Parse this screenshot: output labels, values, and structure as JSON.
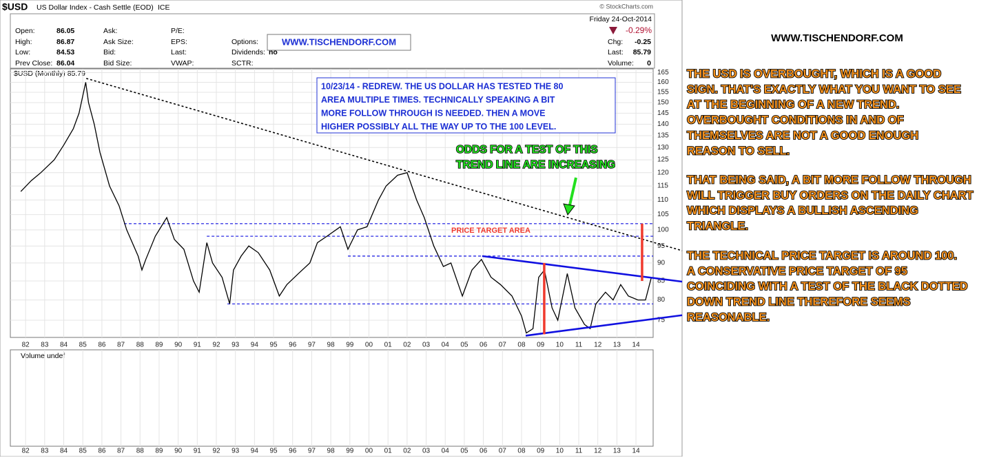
{
  "header": {
    "symbol": "$USD",
    "name": "US Dollar Index - Cash Settle (EOD)",
    "exchange": "ICE",
    "source": "© StockCharts.com",
    "date": "Friday  24-Oct-2014",
    "change_pct": "-0.29%",
    "col1": [
      {
        "label": "Open:",
        "value": 86.05
      },
      {
        "label": "High:",
        "value": 86.87
      },
      {
        "label": "Low:",
        "value": 84.53
      },
      {
        "label": "Prev Close:",
        "value": 86.04
      }
    ],
    "col2": [
      "Ask:",
      "Ask Size:",
      "Bid:",
      "Bid Size:"
    ],
    "col3": [
      "P/E:",
      "EPS:",
      "Last:",
      "VWAP:"
    ],
    "col4": [
      "Options:",
      "Dividends:",
      "SCTR:"
    ],
    "dividends_value": "no",
    "right": [
      {
        "label": "Chg:",
        "value": -0.25
      },
      {
        "label": "Last:",
        "value": 85.79
      },
      {
        "label": "Volume:",
        "value": 0
      }
    ]
  },
  "chart_data": {
    "type": "line",
    "legend": "$USD (Monthly)",
    "last": 85.79,
    "x": [
      1981.75,
      1982.3,
      1982.8,
      1983.5,
      1984.0,
      1984.5,
      1984.8,
      1985.15,
      1985.3,
      1985.6,
      1985.9,
      1986.4,
      1986.9,
      1987.3,
      1987.9,
      1988.1,
      1988.3,
      1988.8,
      1989.4,
      1989.8,
      1990.3,
      1990.8,
      1991.1,
      1991.5,
      1991.8,
      1992.3,
      1992.7,
      1992.9,
      1993.3,
      1993.7,
      1994.2,
      1994.8,
      1995.3,
      1995.7,
      1996.3,
      1996.9,
      1997.3,
      1997.8,
      1998.5,
      1998.9,
      1999.4,
      1999.9,
      2000.5,
      2000.9,
      2001.5,
      2002.0,
      2002.5,
      2002.9,
      2003.4,
      2003.9,
      2004.3,
      2004.9,
      2005.4,
      2005.9,
      2006.4,
      2006.9,
      2007.5,
      2008.0,
      2008.25,
      2008.6,
      2008.9,
      2009.2,
      2009.6,
      2009.9,
      2010.4,
      2010.8,
      2011.3,
      2011.6,
      2011.9,
      2012.4,
      2012.8,
      2013.2,
      2013.6,
      2014.1,
      2014.5,
      2014.8
    ],
    "series": [
      {
        "name": "$USD (Monthly)",
        "color": "#000000",
        "values": [
          113,
          117,
          120,
          125,
          131,
          138,
          145,
          160,
          150,
          140,
          128,
          115,
          108,
          100,
          92,
          88,
          91,
          98,
          104,
          97,
          94,
          85,
          82,
          96,
          90,
          86,
          79,
          88,
          92,
          95,
          93,
          88,
          81,
          84,
          87,
          90,
          96,
          98,
          101,
          94,
          100,
          101,
          110,
          115,
          119,
          120,
          110,
          104,
          95,
          89,
          90,
          81,
          88,
          91,
          86,
          84,
          81,
          76,
          72,
          73,
          86,
          88,
          78,
          75,
          87,
          78,
          74,
          73,
          79,
          82,
          80,
          84,
          81,
          80,
          80,
          85.79
        ]
      }
    ],
    "xlim": [
      1981.2,
      2014.9
    ],
    "ylim": [
      71,
      167
    ],
    "log_y": true,
    "grid": true,
    "xticks": [
      {
        "value": 1982,
        "label": "82"
      },
      {
        "value": 1983,
        "label": "83"
      },
      {
        "value": 1984,
        "label": "84"
      },
      {
        "value": 1985,
        "label": "85"
      },
      {
        "value": 1986,
        "label": "86"
      },
      {
        "value": 1987,
        "label": "87"
      },
      {
        "value": 1988,
        "label": "88"
      },
      {
        "value": 1989,
        "label": "89"
      },
      {
        "value": 1990,
        "label": "90"
      },
      {
        "value": 1991,
        "label": "91"
      },
      {
        "value": 1992,
        "label": "92"
      },
      {
        "value": 1993,
        "label": "93"
      },
      {
        "value": 1994,
        "label": "94"
      },
      {
        "value": 1995,
        "label": "95"
      },
      {
        "value": 1996,
        "label": "96"
      },
      {
        "value": 1997,
        "label": "97"
      },
      {
        "value": 1998,
        "label": "98"
      },
      {
        "value": 1999,
        "label": "99"
      },
      {
        "value": 2000,
        "label": "00"
      },
      {
        "value": 2001,
        "label": "01"
      },
      {
        "value": 2002,
        "label": "02"
      },
      {
        "value": 2003,
        "label": "03"
      },
      {
        "value": 2004,
        "label": "04"
      },
      {
        "value": 2005,
        "label": "05"
      },
      {
        "value": 2006,
        "label": "06"
      },
      {
        "value": 2007,
        "label": "07"
      },
      {
        "value": 2008,
        "label": "08"
      },
      {
        "value": 2009,
        "label": "09"
      },
      {
        "value": 2010,
        "label": "10"
      },
      {
        "value": 2011,
        "label": "11"
      },
      {
        "value": 2012,
        "label": "12"
      },
      {
        "value": 2013,
        "label": "13"
      },
      {
        "value": 2014,
        "label": "14"
      }
    ],
    "yticks": [
      75,
      80,
      85,
      90,
      95,
      100,
      105,
      110,
      115,
      120,
      125,
      130,
      135,
      140,
      145,
      150,
      155,
      160,
      165
    ],
    "trendlines": [
      {
        "color": "#000000",
        "style": "dotted",
        "x": [
          1985.18,
          2016.42
        ],
        "values": [
          162,
          93.6
        ]
      },
      {
        "color": "#1010e0",
        "style": "solid",
        "x": [
          2005.94,
          2016.42
        ],
        "values": [
          92,
          84.8
        ]
      },
      {
        "color": "#1010e0",
        "style": "solid",
        "x": [
          2008.22,
          2016.42
        ],
        "values": [
          71.4,
          76.2
        ]
      }
    ],
    "levels": [
      {
        "x": [
          1987.16,
          2014.9
        ],
        "value": 102
      },
      {
        "x": [
          1991.5,
          2014.9
        ],
        "value": 98
      },
      {
        "x": [
          1998.9,
          2014.9
        ],
        "value": 92
      },
      {
        "x": [
          1992.58,
          2014.9
        ],
        "value": 79
      }
    ],
    "level_color": "#1010e0",
    "targets": [
      {
        "x": 2009.19,
        "values": [
          71.7,
          90
        ]
      },
      {
        "x": 2014.32,
        "values": [
          85,
          102
        ]
      }
    ],
    "target_color": "#f03a2e"
  },
  "volume_panel": {
    "label": "Volume undef"
  },
  "annotations": {
    "site": "WWW.TISCHENDORF.COM",
    "note": [
      "10/23/14 - REDREW. THE US DOLLAR HAS TESTED THE 80",
      "AREA MULTIPLE TIMES. TECHNICALLY SPEAKING A BIT",
      "MORE FOLLOW THROUGH IS NEEDED. THEN A MOVE",
      "HIGHER POSSIBLY ALL THE WAY UP TO THE 100 LEVEL."
    ],
    "target_area": "PRICE TARGET AREA",
    "odds": [
      "ODDS FOR A TEST OF THIS",
      "TREND LINE ARE INCREASING"
    ]
  },
  "side_panel": {
    "site": "WWW.TISCHENDORF.COM",
    "paragraphs": [
      [
        "THE USD IS OVERBOUGHT, WHICH IS A GOOD",
        "SIGN. THAT'S EXACTLY WHAT YOU WANT TO SEE",
        "AT THE BEGINNING OF A NEW TREND.",
        "OVERBOUGHT CONDITIONS IN AND OF",
        "THEMSELVES ARE NOT A GOOD ENOUGH",
        "REASON TO SELL."
      ],
      [
        "THAT BEING SAID, A BIT MORE FOLLOW THROUGH",
        "WILL TRIGGER BUY ORDERS ON THE DAILY CHART",
        "WHICH DISPLAYS A BULLISH ASCENDING",
        "TRIANGLE."
      ],
      [
        "THE TECHNICAL PRICE TARGET IS AROUND 100.",
        "A CONSERVATIVE PRICE TARGET OF 95",
        "COINCIDING WITH A TEST OF THE BLACK DOTTED",
        "DOWN TREND LINE THEREFORE SEEMS",
        "REASONABLE."
      ]
    ]
  }
}
